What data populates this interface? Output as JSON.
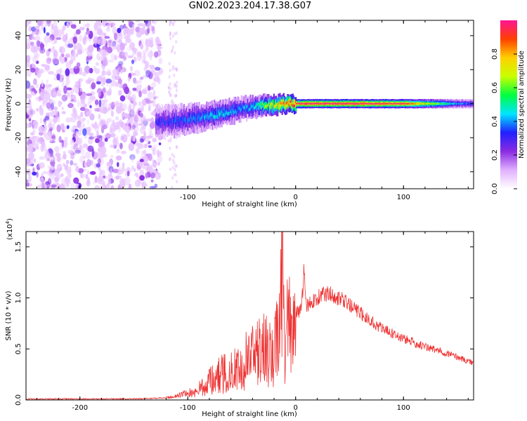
{
  "title": "GN02.2023.204.17.38.G07",
  "chart_data": [
    {
      "type": "heatmap",
      "xlabel": "Height of straight line (km)",
      "ylabel": "Frequency (Hz)",
      "xlim": [
        -250,
        165
      ],
      "ylim": [
        -50,
        49
      ],
      "x_ticks": [
        -200,
        -100,
        0,
        100
      ],
      "y_ticks": [
        -40,
        -20,
        0,
        20,
        40
      ],
      "colorbar": {
        "label": "Normalized spectral amplitude",
        "range": [
          0,
          1
        ],
        "ticks": [
          "0.0",
          "0.2",
          "0.4",
          "0.6",
          "0.8"
        ],
        "colormap": [
          "#ffffff",
          "#e0b0ff",
          "#8a2be2",
          "#2020ff",
          "#00e5ff",
          "#00ff40",
          "#c8ff00",
          "#ffd000",
          "#ff4000",
          "#ff1493"
        ]
      },
      "ridge": {
        "x": [
          -130,
          -110,
          -90,
          -70,
          -50,
          -40,
          -30,
          -20,
          -10,
          0,
          10,
          50,
          100,
          150,
          165
        ],
        "y": [
          -11,
          -10,
          -8,
          -6,
          -3,
          -2,
          -1,
          -1,
          0,
          0,
          0,
          0,
          0,
          0,
          0
        ],
        "peak_amplitude": [
          0.3,
          0.35,
          0.4,
          0.45,
          0.4,
          0.45,
          0.6,
          0.75,
          0.85,
          0.95,
          1.0,
          1.0,
          0.95,
          0.4,
          0.35
        ]
      },
      "noise_region_x": [
        -250,
        -125
      ]
    },
    {
      "type": "line",
      "xlabel": "Height of straight line (km)",
      "ylabel": "SNR (10 * v/v)",
      "y_scale_label": "(x10",
      "y_scale_exponent": "4",
      "ylabel_suffix": ")",
      "xlim": [
        -250,
        165
      ],
      "ylim": [
        0,
        1.65
      ],
      "x_ticks": [
        -200,
        -100,
        0,
        100
      ],
      "y_tick_labels": [
        "0.0",
        "0.5",
        "1.0",
        "1.5"
      ],
      "y_tick_values": [
        0,
        0.5,
        1.0,
        1.5
      ],
      "series": [
        {
          "color": "#ee3333",
          "x": [
            -250,
            -200,
            -150,
            -120,
            -110,
            -100,
            -90,
            -80,
            -70,
            -60,
            -50,
            -40,
            -30,
            -20,
            -15,
            -12,
            -10,
            -5,
            0,
            5,
            8,
            10,
            20,
            30,
            40,
            50,
            60,
            80,
            100,
            120,
            140,
            165
          ],
          "y": [
            0.01,
            0.01,
            0.01,
            0.02,
            0.04,
            0.07,
            0.12,
            0.2,
            0.28,
            0.33,
            0.4,
            0.48,
            0.55,
            0.62,
            0.68,
            1.65,
            0.75,
            0.8,
            0.85,
            0.88,
            1.25,
            0.92,
            1.0,
            1.05,
            1.0,
            0.93,
            0.85,
            0.7,
            0.6,
            0.52,
            0.46,
            0.36
          ]
        }
      ]
    }
  ]
}
